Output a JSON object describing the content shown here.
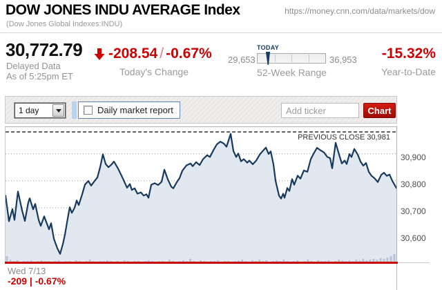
{
  "header": {
    "title": "DOW JONES INDU AVERAGE Index",
    "subtitle": "(Dow Jones Global Indexes:INDU)",
    "url": "https://money.cnn.com/data/markets/dow"
  },
  "quote": {
    "price": "30,772.79",
    "delayed_line1": "Delayed Data",
    "delayed_line2": "As of 5:25pm ET",
    "change": {
      "value": "-208.54",
      "separator": "/",
      "percent": "-0.67%",
      "label": "Today's Change"
    },
    "week_range": {
      "low": "29,653",
      "high": "36,953",
      "today_label": "TODAY",
      "label": "52-Week Range",
      "marker_pct": 15.3
    },
    "ytd": {
      "value": "-15.32%",
      "label": "Year-to-Date"
    }
  },
  "toolbar": {
    "period_selected": "1 day",
    "report_label": "Daily market report",
    "ticker_placeholder": "Add ticker",
    "chart_button": "Chart"
  },
  "icons": {
    "change_arrow": "down-arrow",
    "select_caret": "caret-down",
    "report_checkbox": "checkbox-unchecked"
  },
  "colors": {
    "accent_red": "#cc0000",
    "navy_line": "#16395d",
    "area_fill": "#e2e8ef",
    "volume_fill": "#b6c4d3",
    "grid_gray": "#999999",
    "muted_text": "#9a9a9a"
  },
  "chart_data": {
    "type": "area",
    "title": "Dow Jones Industrial Average intraday price",
    "x_label": "Wed 7/13",
    "footer_change": "-209 | -0.67%",
    "session_minutes": 390,
    "y_range": [
      30495,
      30999
    ],
    "grid": true,
    "prev_close": {
      "label": "PREVIOUS CLOSE 30,981",
      "value": 30981
    },
    "y_ticks": [
      {
        "label": "30,900",
        "value": 30900
      },
      {
        "label": "30,800",
        "value": 30800
      },
      {
        "label": "30,700",
        "value": 30700
      },
      {
        "label": "30,600",
        "value": 30600
      }
    ],
    "close_value": 30772.79,
    "points": [
      [
        0,
        30745
      ],
      [
        5,
        30650
      ],
      [
        10,
        30695
      ],
      [
        13,
        30655
      ],
      [
        18,
        30760
      ],
      [
        24,
        30690
      ],
      [
        28,
        30651
      ],
      [
        33,
        30720
      ],
      [
        35,
        30735
      ],
      [
        40,
        30694
      ],
      [
        43,
        30714
      ],
      [
        48,
        30655
      ],
      [
        51,
        30633
      ],
      [
        56,
        30668
      ],
      [
        63,
        30620
      ],
      [
        66,
        30643
      ],
      [
        70,
        30585
      ],
      [
        75,
        30550
      ],
      [
        79,
        30529
      ],
      [
        83,
        30565
      ],
      [
        86,
        30600
      ],
      [
        90,
        30660
      ],
      [
        93,
        30702
      ],
      [
        96,
        30681
      ],
      [
        100,
        30700
      ],
      [
        103,
        30727
      ],
      [
        106,
        30710
      ],
      [
        111,
        30750
      ],
      [
        115,
        30786
      ],
      [
        120,
        30799
      ],
      [
        124,
        30782
      ],
      [
        128,
        30796
      ],
      [
        133,
        30812
      ],
      [
        137,
        30850
      ],
      [
        141,
        30898
      ],
      [
        145,
        30862
      ],
      [
        149,
        30850
      ],
      [
        153,
        30859
      ],
      [
        157,
        30871
      ],
      [
        163,
        30845
      ],
      [
        170,
        30808
      ],
      [
        176,
        30774
      ],
      [
        180,
        30788
      ],
      [
        183,
        30766
      ],
      [
        187,
        30772
      ],
      [
        191,
        30752
      ],
      [
        196,
        30757
      ],
      [
        200,
        30745
      ],
      [
        204,
        30750
      ],
      [
        207,
        30737
      ],
      [
        211,
        30785
      ],
      [
        216,
        30791
      ],
      [
        221,
        30784
      ],
      [
        226,
        30796
      ],
      [
        230,
        30841
      ],
      [
        235,
        30805
      ],
      [
        240,
        30778
      ],
      [
        243,
        30772
      ],
      [
        248,
        30795
      ],
      [
        252,
        30810
      ],
      [
        256,
        30837
      ],
      [
        262,
        30857
      ],
      [
        268,
        30864
      ],
      [
        271,
        30854
      ],
      [
        276,
        30869
      ],
      [
        281,
        30858
      ],
      [
        286,
        30880
      ],
      [
        292,
        30895
      ],
      [
        296,
        30888
      ],
      [
        301,
        30913
      ],
      [
        306,
        30935
      ],
      [
        311,
        30945
      ],
      [
        316,
        30938
      ],
      [
        320,
        30926
      ],
      [
        326,
        30974
      ],
      [
        330,
        30910
      ],
      [
        334,
        30888
      ],
      [
        337,
        30901
      ],
      [
        341,
        30872
      ],
      [
        345,
        30880
      ],
      [
        350,
        30867
      ],
      [
        353,
        30875
      ],
      [
        358,
        30861
      ],
      [
        363,
        30875
      ],
      [
        368,
        30897
      ],
      [
        372,
        30909
      ],
      [
        377,
        30923
      ],
      [
        381,
        30899
      ],
      [
        384,
        30909
      ],
      [
        388,
        30860
      ],
      [
        391,
        30800
      ],
      [
        396,
        30745
      ],
      [
        399,
        30734
      ],
      [
        402,
        30752
      ],
      [
        404,
        30737
      ],
      [
        408,
        30773
      ],
      [
        411,
        30762
      ],
      [
        415,
        30806
      ],
      [
        418,
        30785
      ],
      [
        423,
        30819
      ],
      [
        427,
        30808
      ],
      [
        432,
        30838
      ],
      [
        437,
        30833
      ],
      [
        442,
        30880
      ],
      [
        446,
        30900
      ],
      [
        451,
        30922
      ],
      [
        456,
        30913
      ],
      [
        461,
        30905
      ],
      [
        466,
        30888
      ],
      [
        470,
        30884
      ],
      [
        473,
        30846
      ],
      [
        478,
        30941
      ],
      [
        483,
        30897
      ],
      [
        487,
        30864
      ],
      [
        491,
        30875
      ],
      [
        494,
        30862
      ],
      [
        498,
        30899
      ],
      [
        501,
        30888
      ],
      [
        505,
        30918
      ],
      [
        510,
        30897
      ],
      [
        514,
        30871
      ],
      [
        518,
        30856
      ],
      [
        522,
        30866
      ],
      [
        526,
        30833
      ],
      [
        530,
        30818
      ],
      [
        534,
        30810
      ],
      [
        539,
        30795
      ],
      [
        544,
        30822
      ],
      [
        548,
        30830
      ],
      [
        552,
        30818
      ],
      [
        556,
        30823
      ],
      [
        560,
        30800
      ],
      [
        566,
        30773
      ]
    ],
    "volume_bars": [
      10,
      5,
      3,
      4,
      2,
      3,
      3,
      4,
      2,
      3,
      4,
      3,
      3,
      2,
      3,
      4,
      2,
      3,
      3,
      2,
      4,
      3,
      2,
      3,
      5,
      3,
      2,
      3,
      3,
      4,
      3,
      2,
      3,
      2,
      4,
      3,
      2,
      3,
      3,
      2,
      3,
      4,
      3,
      2,
      3,
      3,
      2,
      5,
      3,
      2,
      3,
      4,
      3,
      6,
      3,
      2,
      4,
      3,
      2,
      3,
      3,
      4,
      2,
      3,
      3,
      2,
      3,
      4,
      5,
      3,
      2,
      4,
      3,
      5,
      3,
      4,
      2,
      3,
      4,
      3,
      5,
      3,
      2,
      3,
      4,
      2,
      3,
      5,
      3,
      2,
      4,
      3,
      3,
      4,
      2,
      3,
      5,
      4,
      3,
      4,
      3,
      5,
      4,
      6,
      4,
      5,
      6,
      5,
      7,
      6,
      8,
      10,
      13
    ]
  }
}
